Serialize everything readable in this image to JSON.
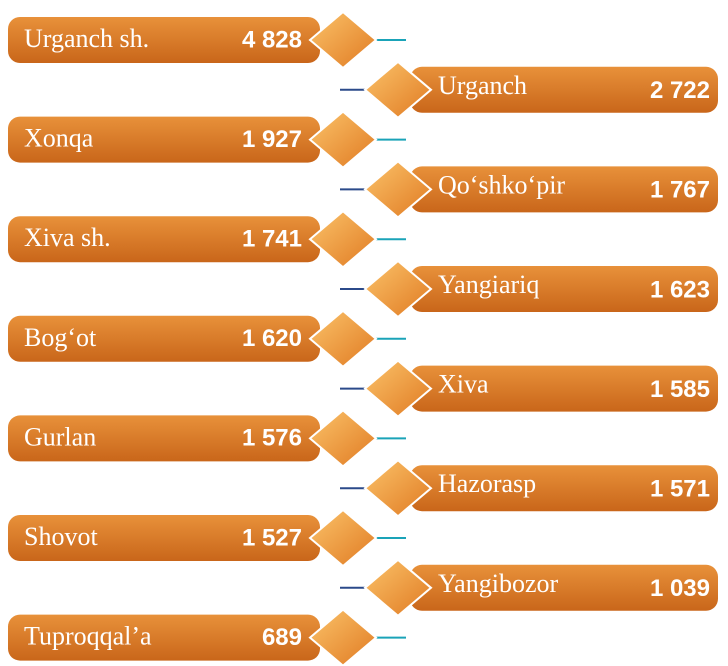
{
  "items": [
    {
      "name": "Urganch sh.",
      "value": "4 828"
    },
    {
      "name": "Urganch",
      "value": "2 722"
    },
    {
      "name": "Xonqa",
      "value": "1 927"
    },
    {
      "name": "Qo‘shko‘pir",
      "value": "1 767"
    },
    {
      "name": "Xiva sh.",
      "value": "1 741"
    },
    {
      "name": "Yangiariq",
      "value": "1 623"
    },
    {
      "name": "Bog‘ot",
      "value": "1 620"
    },
    {
      "name": "Xiva",
      "value": "1 585"
    },
    {
      "name": "Gurlan",
      "value": "1 576"
    },
    {
      "name": "Hazorasp",
      "value": "1 571"
    },
    {
      "name": "Shovot",
      "value": "1 527"
    },
    {
      "name": "Yangibozor",
      "value": "1 039"
    },
    {
      "name": "Tuproqqal’a",
      "value": "689"
    }
  ]
}
